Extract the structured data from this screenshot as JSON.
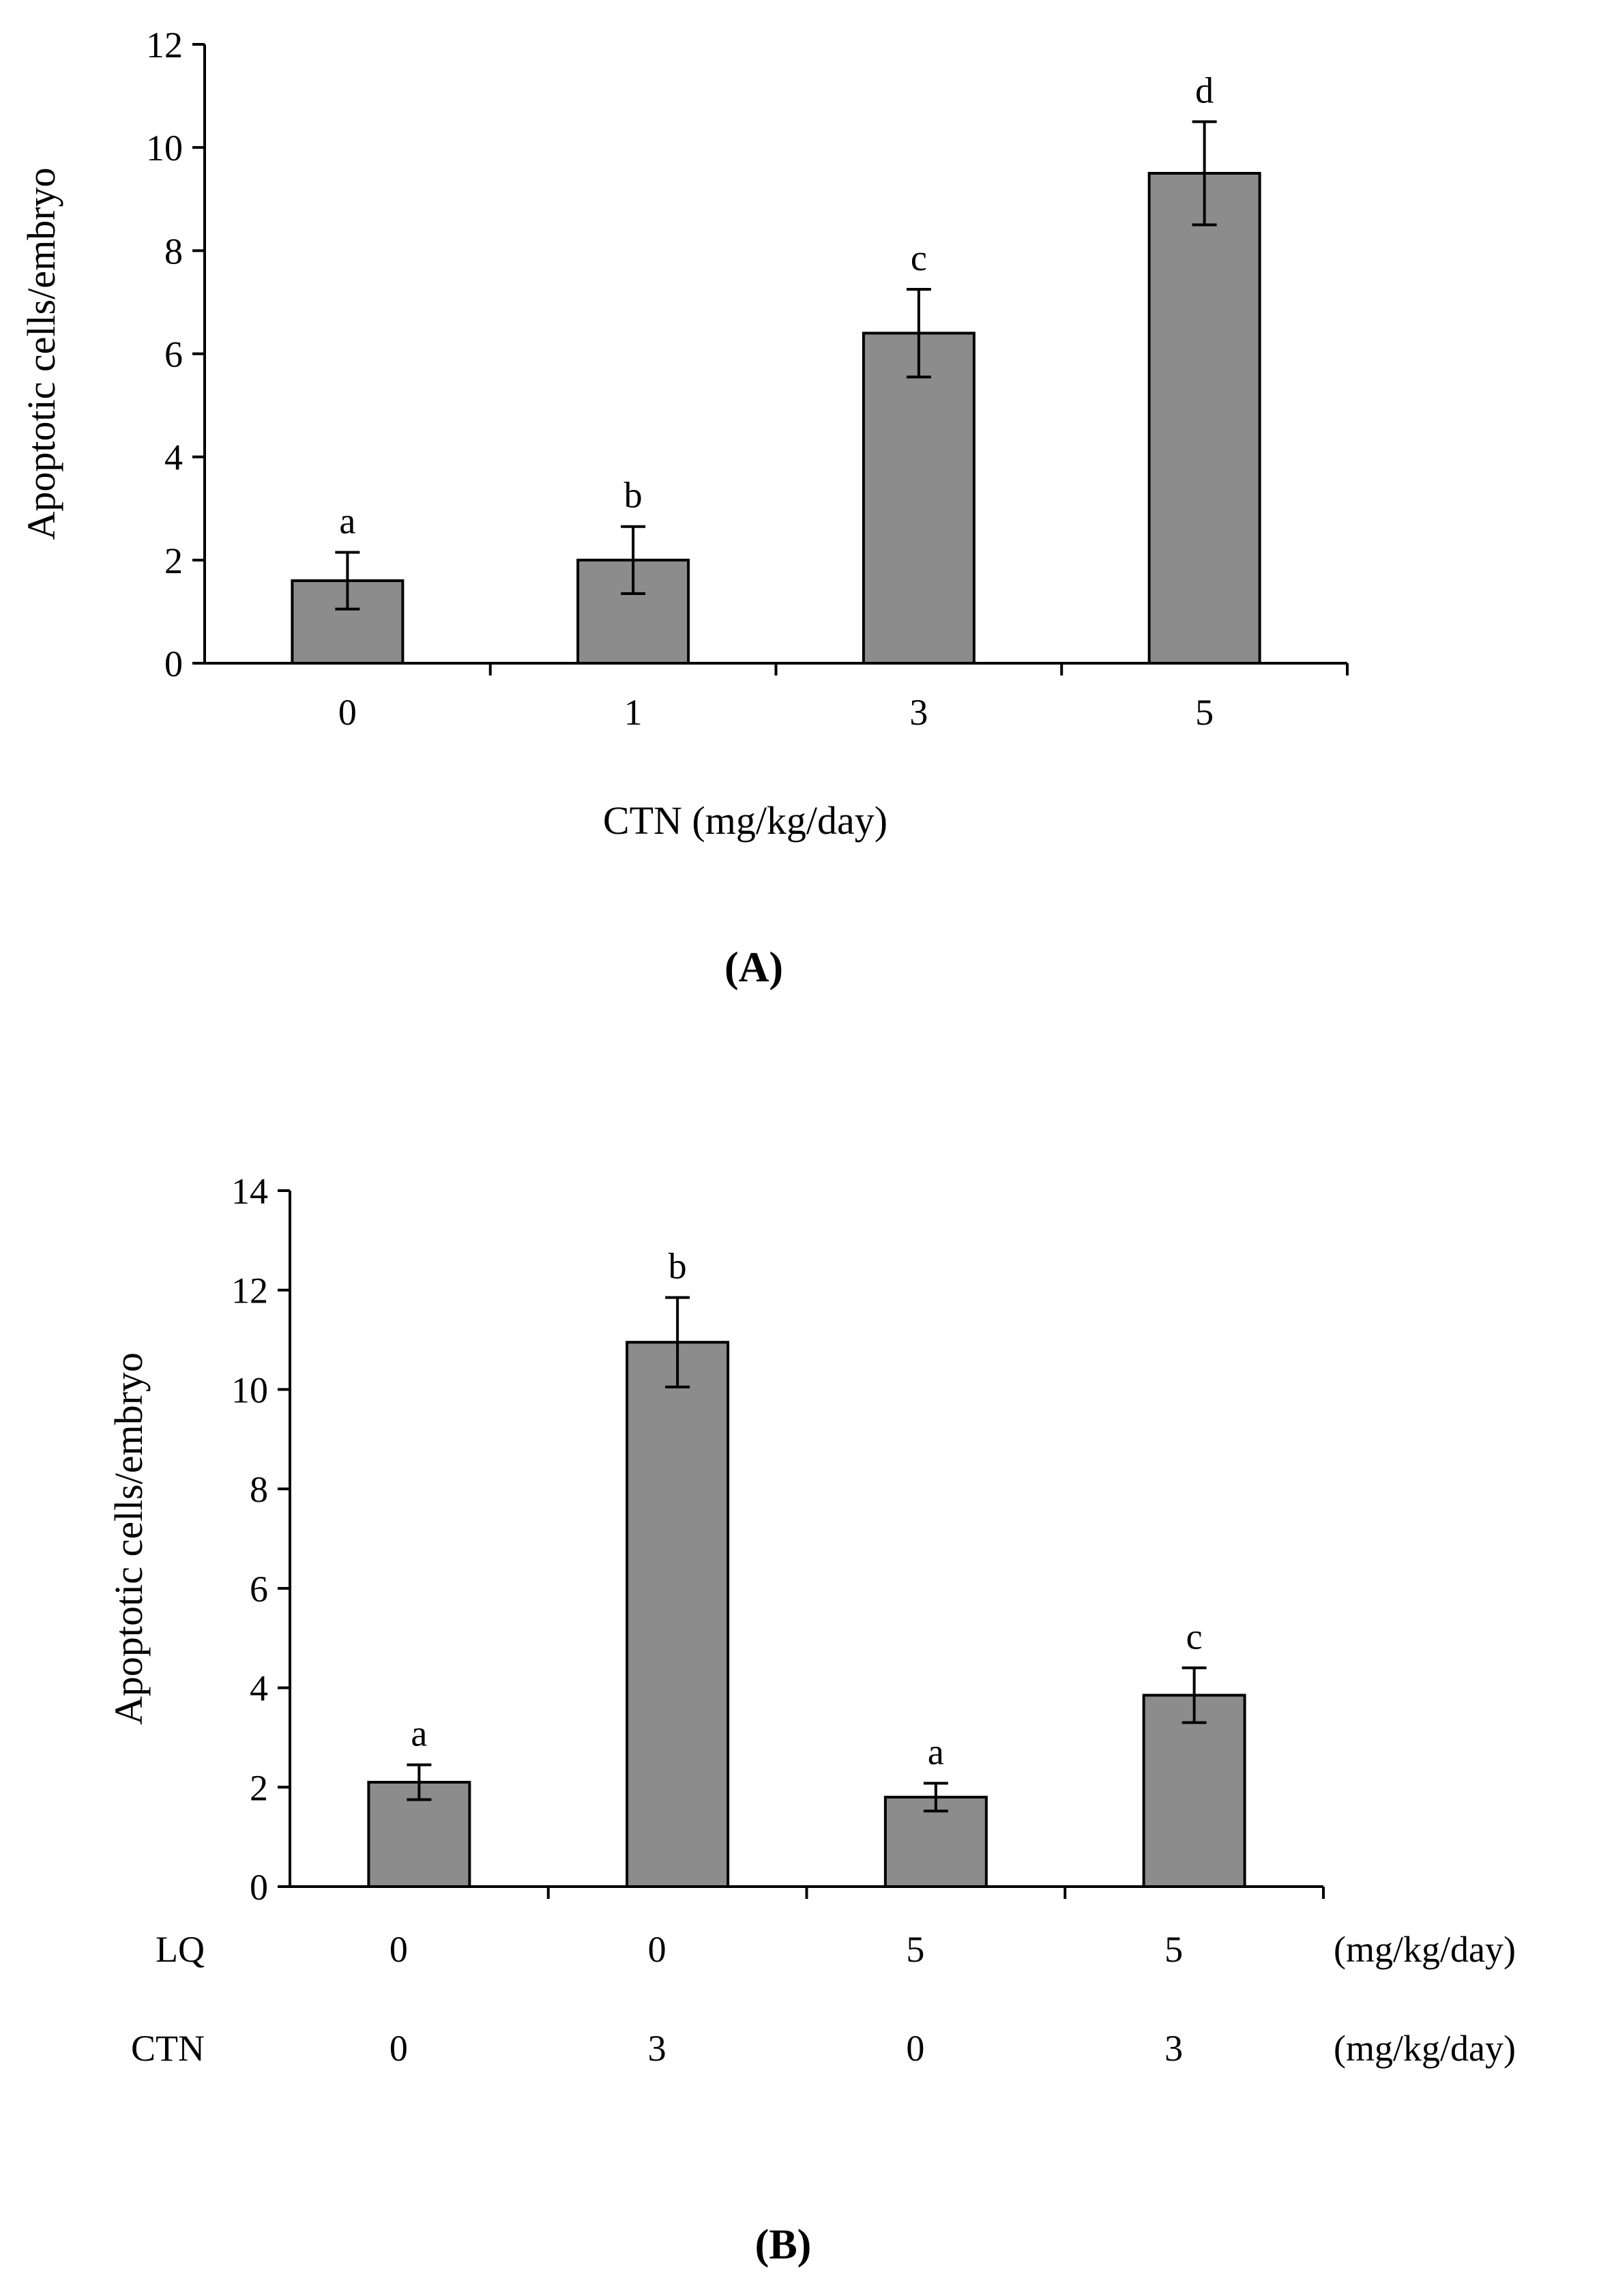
{
  "colors": {
    "bar": "#8c8c8c",
    "stroke": "#000000",
    "background": "#ffffff"
  },
  "chart_data": [
    {
      "panel": "(A)",
      "type": "bar",
      "title": "",
      "xlabel": "CTN (mg/kg/day)",
      "ylabel": "Apoptotic cells/embryo",
      "ylim": [
        0,
        12
      ],
      "yticks": [
        0,
        2,
        4,
        6,
        8,
        10,
        12
      ],
      "categories": [
        "0",
        "1",
        "3",
        "5"
      ],
      "values": [
        1.6,
        2.0,
        6.4,
        9.5
      ],
      "errors": [
        0.55,
        0.65,
        0.85,
        1.0
      ],
      "significance": [
        "a",
        "b",
        "c",
        "d"
      ],
      "grid": false
    },
    {
      "panel": "(B)",
      "type": "bar",
      "title": "",
      "xlabel": "",
      "ylabel": "Apoptotic cells/embryo",
      "ylim": [
        0,
        14
      ],
      "yticks": [
        0,
        2,
        4,
        6,
        8,
        10,
        12,
        14
      ],
      "categories": [
        "LQ 0 / CTN 0",
        "LQ 0 / CTN 3",
        "LQ 5 / CTN 0",
        "LQ 5 / CTN 3"
      ],
      "values": [
        2.1,
        10.95,
        1.8,
        3.85
      ],
      "errors": [
        0.35,
        0.9,
        0.28,
        0.55
      ],
      "significance": [
        "a",
        "b",
        "a",
        "c"
      ],
      "grid": false,
      "factor_rows": [
        {
          "name": "LQ",
          "values": [
            "0",
            "0",
            "5",
            "5"
          ],
          "unit": "(mg/kg/day)"
        },
        {
          "name": "CTN",
          "values": [
            "0",
            "3",
            "0",
            "3"
          ],
          "unit": "(mg/kg/day)"
        }
      ]
    }
  ]
}
